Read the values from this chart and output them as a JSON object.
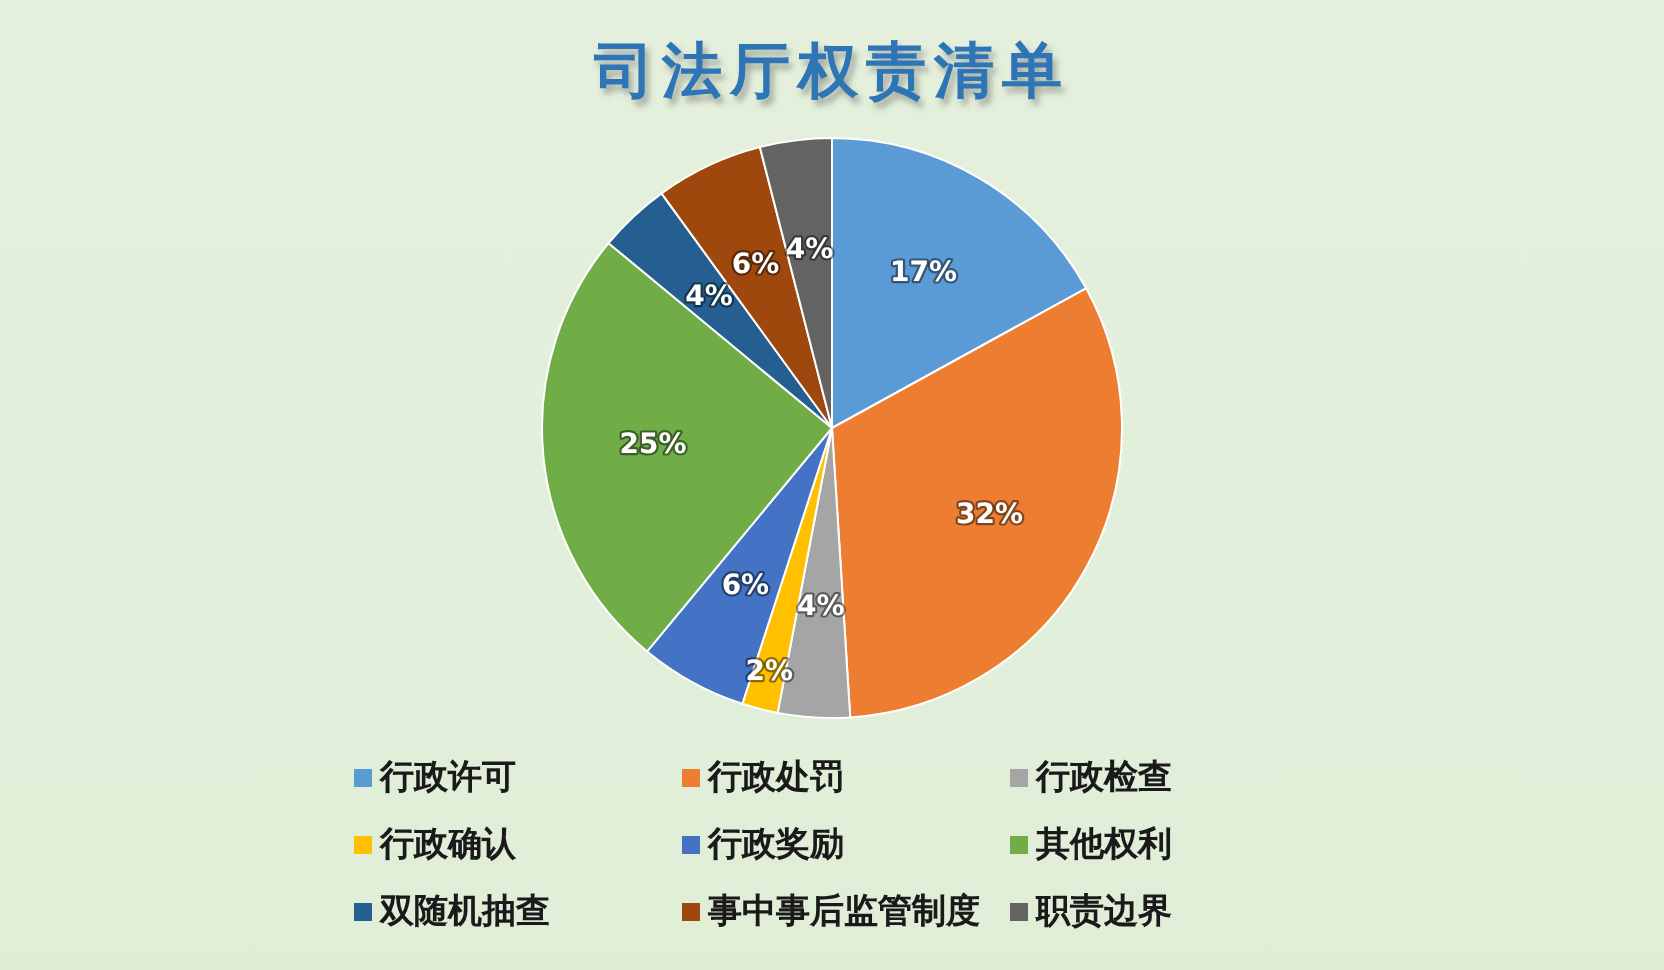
{
  "chart_data": {
    "type": "pie",
    "title": "司法厅权责清单",
    "categories": [
      "行政许可",
      "行政处罚",
      "行政检查",
      "行政确认",
      "行政奖励",
      "其他权利",
      "双随机抽查",
      "事中事后监管制度",
      "职责边界"
    ],
    "values": [
      17,
      32,
      4,
      2,
      6,
      25,
      4,
      6,
      4
    ],
    "value_labels": [
      "17%",
      "32%",
      "4%",
      "2%",
      "6%",
      "25%",
      "4%",
      "6%",
      "4%"
    ],
    "colors": [
      "#5b9bd5",
      "#ed7d31",
      "#a5a5a5",
      "#ffc000",
      "#4472c4",
      "#70ad47",
      "#255e91",
      "#9e480e",
      "#636363"
    ],
    "legend": "bottom"
  }
}
